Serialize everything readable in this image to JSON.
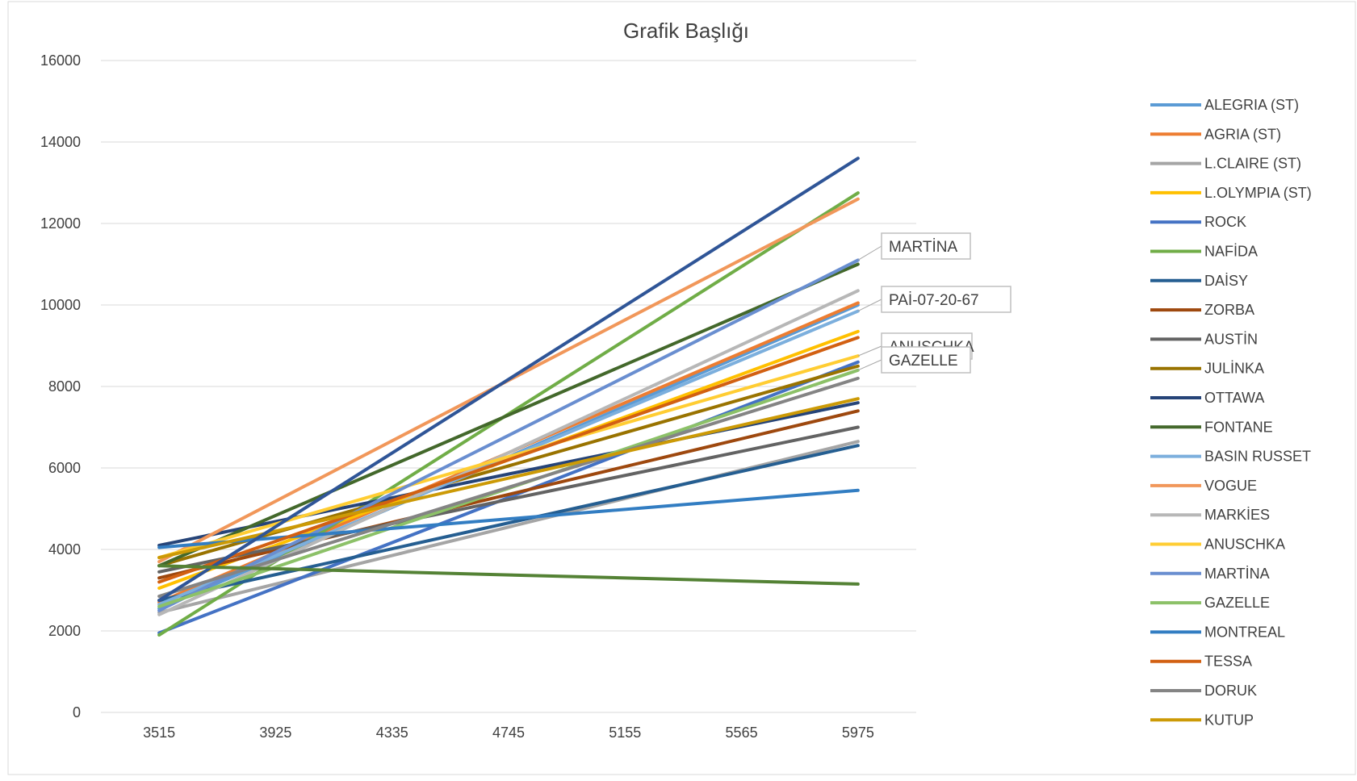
{
  "chart_data": {
    "type": "line",
    "title": "Grafik Başlığı",
    "xlabel": "",
    "ylabel": "",
    "ylim": [
      0,
      16000
    ],
    "yticks": [
      "0",
      "2000",
      "4000",
      "6000",
      "8000",
      "10000",
      "12000",
      "14000",
      "16000"
    ],
    "categories": [
      "3515",
      "3925",
      "4335",
      "4745",
      "5155",
      "5565",
      "5975"
    ],
    "grid": true,
    "legend_position": "right",
    "series": [
      {
        "name": "ALEGRIA (ST)",
        "color": "#5B9BD5",
        "start": 2550,
        "end": 10000
      },
      {
        "name": "AGRIA (ST)",
        "color": "#ED7D31",
        "start": 2700,
        "end": 10050
      },
      {
        "name": "L.CLAIRE (ST)",
        "color": "#A5A5A5",
        "start": 2450,
        "end": 6650
      },
      {
        "name": "L.OLYMPIA (ST)",
        "color": "#FFC000",
        "start": 3050,
        "end": 9350
      },
      {
        "name": "ROCK",
        "color": "#4472C4",
        "start": 1950,
        "end": 8600
      },
      {
        "name": "NAFİDA",
        "color": "#70AD47",
        "start": 1900,
        "end": 12750
      },
      {
        "name": "DAİSY",
        "color": "#255E91",
        "start": 2750,
        "end": 6550
      },
      {
        "name": "ZORBA",
        "color": "#9E480E",
        "start": 3300,
        "end": 7400
      },
      {
        "name": "AUSTİN",
        "color": "#636363",
        "start": 3450,
        "end": 7000
      },
      {
        "name": "JULİNKA",
        "color": "#997300",
        "start": 3600,
        "end": 8500
      },
      {
        "name": "OTTAWA",
        "color": "#264478",
        "start": 4100,
        "end": 7600
      },
      {
        "name": "FONTANE",
        "color": "#43682B",
        "start": 3600,
        "end": 11000
      },
      {
        "name": "BASIN RUSSET",
        "color": "#7CAFDD",
        "start": 2650,
        "end": 9850
      },
      {
        "name": "VOGUE",
        "color": "#F1975A",
        "start": 3700,
        "end": 12600
      },
      {
        "name": "MARKİES",
        "color": "#B7B7B7",
        "start": 2400,
        "end": 10350
      },
      {
        "name": "ANUSCHKA",
        "color": "#FFCD33",
        "start": 3800,
        "end": 8750
      },
      {
        "name": "MARTİNA",
        "color": "#698ED0",
        "start": 2500,
        "end": 11100
      },
      {
        "name": "GAZELLE",
        "color": "#8CC168",
        "start": 2600,
        "end": 8400
      },
      {
        "name": "MONTREAL",
        "color": "#327DC2",
        "start": 4050,
        "end": 5450
      },
      {
        "name": "TESSA",
        "color": "#D26012",
        "start": 3200,
        "end": 9200
      },
      {
        "name": "DORUK",
        "color": "#848484",
        "start": 2850,
        "end": 8200
      },
      {
        "name": "KUTUP",
        "color": "#CC9A06",
        "start": 3800,
        "end": 7700
      },
      {
        "name": "",
        "color": "#2F5597",
        "start": 2750,
        "end": 13600
      },
      {
        "name": "",
        "color": "#548235",
        "start": 3600,
        "end": 3150
      }
    ],
    "annotations": [
      {
        "text": "MARTİNA",
        "anchor_value": 11100
      },
      {
        "text": "PAİ-07-20-67",
        "anchor_value": 9850
      },
      {
        "text": "ANUSCHKA",
        "anchor_value": 8750
      },
      {
        "text": "GAZELLE",
        "anchor_value": 8400
      }
    ]
  }
}
